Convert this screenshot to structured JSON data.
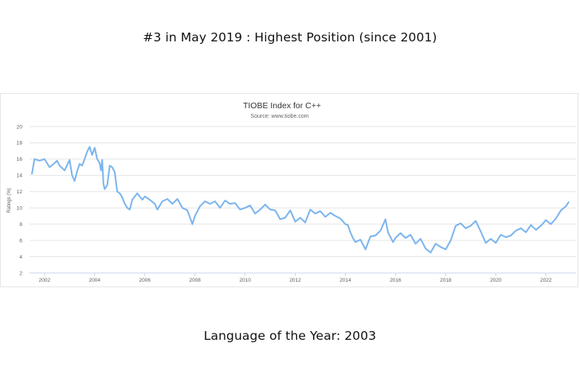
{
  "headline_top": "#3 in May 2019 : Highest Position (since 2001)",
  "headline_bottom": "Language of the Year: 2003",
  "chart_data": {
    "type": "line",
    "title": "TIOBE Index for C++",
    "subtitle": "Source: www.tiobe.com",
    "ylabel": "Ratings (%)",
    "xlabel": "",
    "ylim": [
      2,
      20
    ],
    "yticks": [
      2,
      4,
      6,
      8,
      10,
      12,
      14,
      16,
      18,
      20
    ],
    "xlim": [
      2001.4,
      2023.2
    ],
    "xticks": [
      2002,
      2004,
      2006,
      2008,
      2010,
      2012,
      2014,
      2016,
      2018,
      2020,
      2022
    ],
    "grid": true,
    "legend": "none",
    "color": "#7cb5ec",
    "series": [
      {
        "x": [
          2001.5,
          2001.6,
          2001.8,
          2002.0,
          2002.2,
          2002.4,
          2002.5,
          2002.6,
          2002.8,
          2003.0,
          2003.1,
          2003.2,
          2003.3,
          2003.4,
          2003.5,
          2003.6,
          2003.7,
          2003.8,
          2003.9,
          2004.0,
          2004.1,
          2004.2,
          2004.25,
          2004.3,
          2004.35,
          2004.4,
          2004.5,
          2004.6,
          2004.7,
          2004.8,
          2004.9,
          2005.0,
          2005.1,
          2005.2,
          2005.3,
          2005.4,
          2005.5,
          2005.7,
          2005.9,
          2006.0,
          2006.2,
          2006.4,
          2006.5,
          2006.7,
          2006.9,
          2007.1,
          2007.3,
          2007.5,
          2007.7,
          2007.9,
          2008.0,
          2008.2,
          2008.4,
          2008.6,
          2008.8,
          2009.0,
          2009.2,
          2009.4,
          2009.6,
          2009.8,
          2010.0,
          2010.2,
          2010.4,
          2010.6,
          2010.8,
          2011.0,
          2011.2,
          2011.4,
          2011.6,
          2011.8,
          2012.0,
          2012.2,
          2012.4,
          2012.6,
          2012.8,
          2013.0,
          2013.2,
          2013.4,
          2013.6,
          2013.8,
          2014.0,
          2014.1,
          2014.2,
          2014.3,
          2014.4,
          2014.6,
          2014.8,
          2015.0,
          2015.2,
          2015.4,
          2015.6,
          2015.7,
          2015.9,
          2016.0,
          2016.2,
          2016.4,
          2016.6,
          2016.8,
          2017.0,
          2017.2,
          2017.4,
          2017.6,
          2017.8,
          2018.0,
          2018.2,
          2018.4,
          2018.6,
          2018.8,
          2019.0,
          2019.2,
          2019.4,
          2019.6,
          2019.8,
          2020.0,
          2020.2,
          2020.4,
          2020.6,
          2020.8,
          2021.0,
          2021.2,
          2021.4,
          2021.6,
          2021.8,
          2022.0,
          2022.2,
          2022.4,
          2022.6,
          2022.8,
          2022.9
        ],
        "y": [
          14.2,
          16.0,
          15.8,
          16.0,
          15.0,
          15.5,
          15.8,
          15.2,
          14.6,
          15.9,
          14.0,
          13.3,
          14.5,
          15.4,
          15.2,
          16.0,
          16.9,
          17.5,
          16.5,
          17.4,
          16.0,
          15.5,
          14.6,
          15.9,
          13.0,
          12.3,
          12.8,
          15.2,
          15.0,
          14.4,
          12.0,
          11.8,
          11.3,
          10.5,
          10.0,
          9.8,
          11.0,
          11.8,
          11.0,
          11.4,
          11.0,
          10.5,
          9.8,
          10.8,
          11.1,
          10.5,
          11.1,
          10.0,
          9.7,
          8.0,
          9.0,
          10.2,
          10.8,
          10.5,
          10.8,
          10.0,
          10.9,
          10.5,
          10.6,
          9.8,
          10.0,
          10.3,
          9.3,
          9.8,
          10.4,
          9.8,
          9.7,
          8.6,
          8.8,
          9.7,
          8.3,
          8.8,
          8.2,
          9.8,
          9.3,
          9.6,
          8.9,
          9.4,
          9.0,
          8.7,
          8.0,
          7.9,
          7.0,
          6.3,
          5.8,
          6.1,
          4.9,
          6.5,
          6.6,
          7.2,
          8.6,
          7.0,
          5.8,
          6.3,
          6.9,
          6.3,
          6.7,
          5.6,
          6.2,
          5.0,
          4.5,
          5.6,
          5.2,
          4.9,
          6.0,
          7.8,
          8.1,
          7.5,
          7.8,
          8.4,
          7.1,
          5.7,
          6.2,
          5.7,
          6.7,
          6.4,
          6.6,
          7.2,
          7.5,
          7.0,
          7.9,
          7.3,
          7.8,
          8.5,
          8.0,
          8.7,
          9.7,
          10.2,
          10.7
        ]
      }
    ]
  }
}
